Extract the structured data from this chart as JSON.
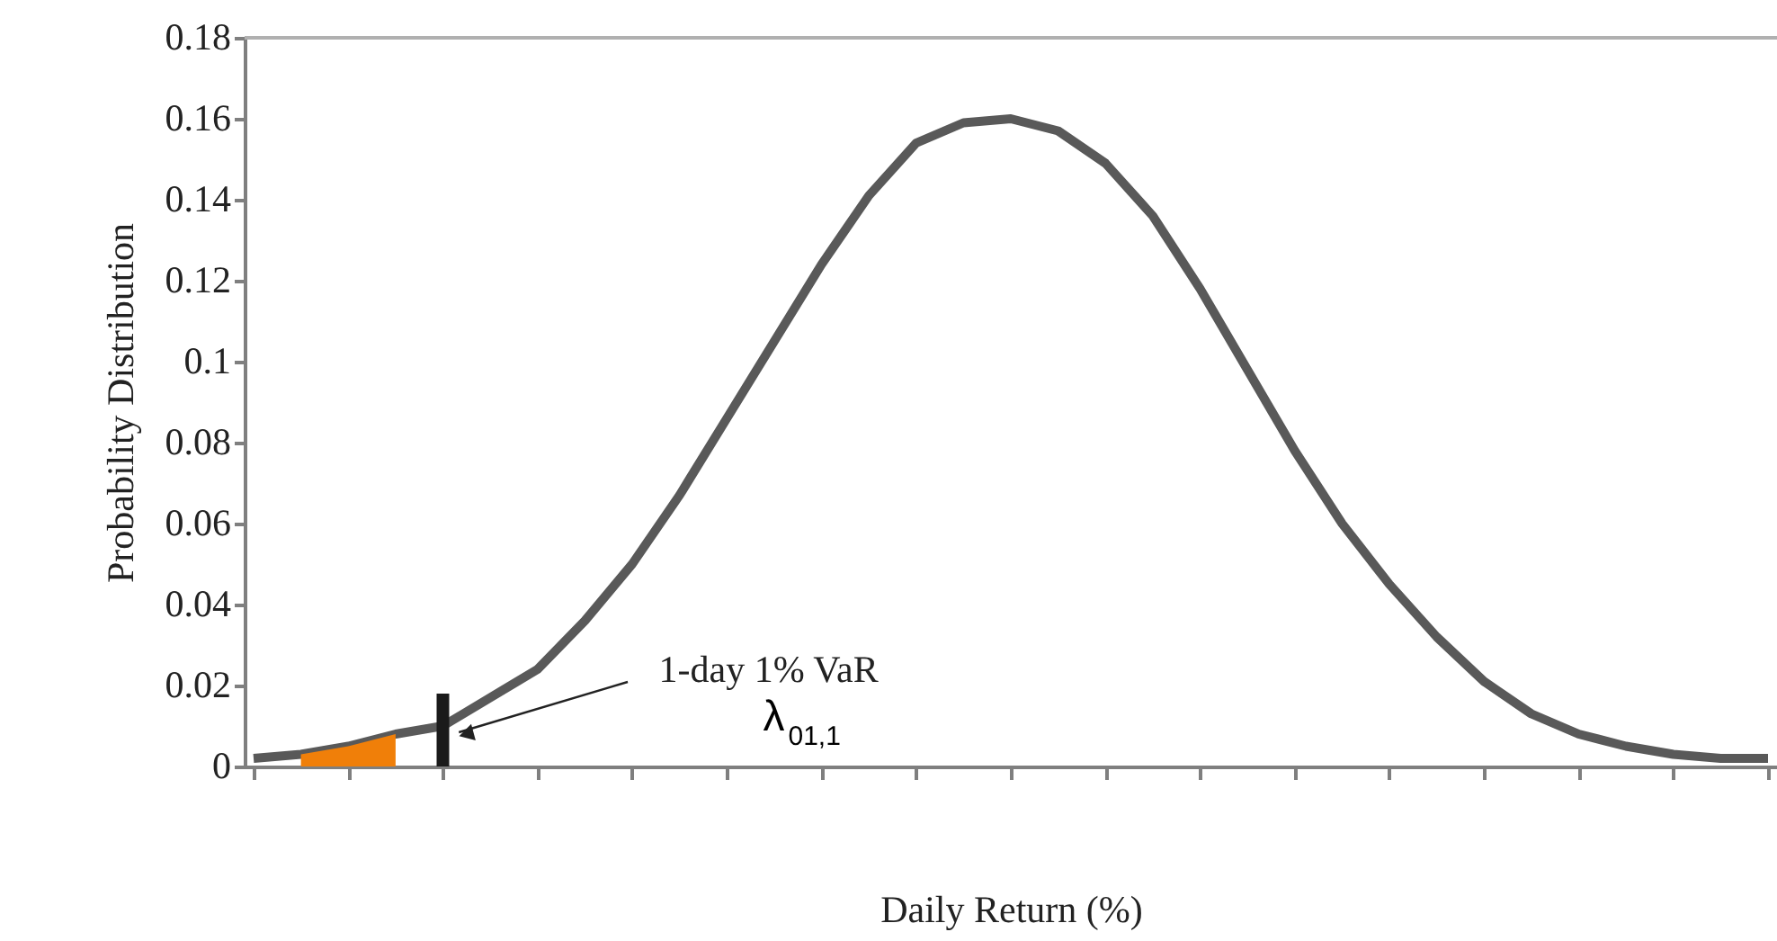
{
  "chart_data": {
    "type": "line",
    "xlabel": "Daily Return (%)",
    "ylabel": "Probability Distribution",
    "categories": [
      null,
      null,
      null,
      null,
      null,
      null,
      null,
      null,
      null,
      null,
      null,
      null,
      null,
      null,
      null,
      null,
      null,
      null,
      null,
      null,
      null,
      null,
      null,
      null,
      null,
      null,
      null,
      null,
      null,
      null,
      null,
      null,
      null
    ],
    "ylim": [
      0,
      0.18
    ],
    "yticks": [
      0,
      0.02,
      0.04,
      0.06,
      0.08,
      0.1,
      0.12,
      0.14,
      0.16,
      0.18
    ],
    "grid": false,
    "marker": "none",
    "line_style": "solid",
    "series": [
      {
        "color": "#595959",
        "values": [
          0.002,
          0.003,
          0.005,
          0.008,
          0.01,
          0.017,
          0.024,
          0.036,
          0.05,
          0.067,
          0.086,
          0.105,
          0.124,
          0.141,
          0.154,
          0.159,
          0.16,
          0.157,
          0.149,
          0.136,
          0.118,
          0.098,
          0.078,
          0.06,
          0.045,
          0.032,
          0.021,
          0.013,
          0.008,
          0.005,
          0.003,
          0.002,
          0.002
        ]
      },
      {
        "type": "area",
        "color": "#f07f09",
        "values": [
          null,
          0.003,
          0.005,
          0.008,
          null,
          null,
          null,
          null,
          null,
          null,
          null,
          null,
          null,
          null,
          null,
          null,
          null,
          null,
          null,
          null,
          null,
          null,
          null,
          null,
          null,
          null,
          null,
          null,
          null,
          null,
          null,
          null,
          null
        ]
      },
      {
        "type": "bar",
        "color": "#1a1a1a",
        "values": [
          null,
          null,
          null,
          null,
          0.018,
          null,
          null,
          null,
          null,
          null,
          null,
          null,
          null,
          null,
          null,
          null,
          null,
          null,
          null,
          null,
          null,
          null,
          null,
          null,
          null,
          null,
          null,
          null,
          null,
          null,
          null,
          null,
          null
        ]
      }
    ],
    "annotations": [
      "1-day 1% VaR",
      "λ$_{01,1}$"
    ]
  }
}
